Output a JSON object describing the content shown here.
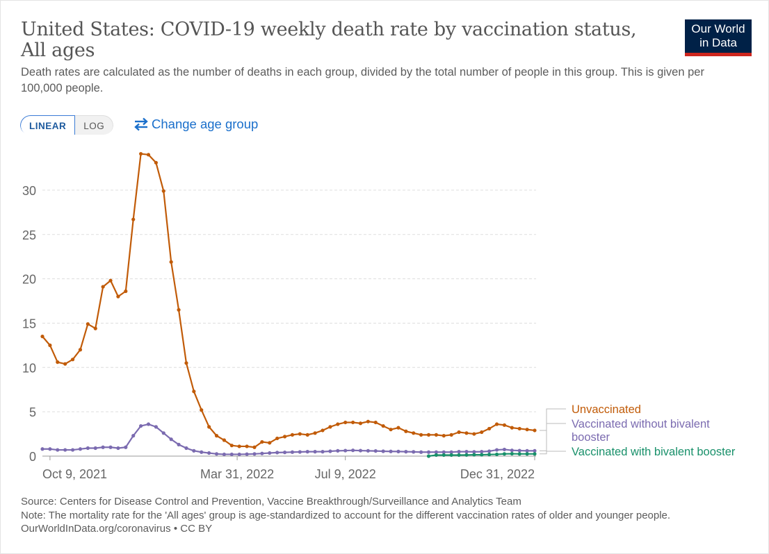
{
  "header": {
    "title": "United States: COVID-19 weekly death rate by vaccination status, All ages",
    "subtitle": "Death rates are calculated as the number of deaths in each group, divided by the total number of people in this group. This is given per 100,000 people.",
    "logo_line1": "Our World",
    "logo_line2": "in Data"
  },
  "controls": {
    "linear_label": "LINEAR",
    "log_label": "LOG",
    "change_age_label": "Change age group"
  },
  "footer": {
    "source": "Source: Centers for Disease Control and Prevention, Vaccine Breakthrough/Surveillance and Analytics Team",
    "note": "Note: The mortality rate for the 'All ages' group is age-standardized to account for the different vaccination rates of older and younger people.",
    "link": "OurWorldInData.org/coronavirus",
    "license": " • CC BY"
  },
  "colors": {
    "unvaccinated": "#c15b08",
    "without_bivalent": "#7b6bb0",
    "with_bivalent": "#18906a",
    "grid": "#dddddd",
    "axis_text": "#666666",
    "logo_bg": "#002147",
    "logo_bar": "#ce261e",
    "link": "#1a6fcb"
  },
  "chart_data": {
    "type": "line",
    "title": "United States: COVID-19 weekly death rate by vaccination status, All ages",
    "ylim": [
      0,
      34
    ],
    "yticks": [
      0,
      5,
      10,
      15,
      20,
      25,
      30
    ],
    "x_tick_labels": [
      "Oct 9, 2021",
      "Mar 31, 2022",
      "Jul 9, 2022",
      "Dec 31, 2022"
    ],
    "x_tick_dates": [
      "2021-10-09",
      "2022-03-31",
      "2022-07-09",
      "2022-12-31"
    ],
    "grid": true,
    "legend": "right end labels",
    "series": [
      {
        "name": "Unvaccinated",
        "color": "#c15b08",
        "dates": [
          "2021-10-02",
          "2021-10-09",
          "2021-10-16",
          "2021-10-23",
          "2021-10-30",
          "2021-11-06",
          "2021-11-13",
          "2021-11-20",
          "2021-11-27",
          "2021-12-04",
          "2021-12-11",
          "2021-12-18",
          "2021-12-25",
          "2022-01-01",
          "2022-01-08",
          "2022-01-15",
          "2022-01-22",
          "2022-01-29",
          "2022-02-05",
          "2022-02-12",
          "2022-02-19",
          "2022-02-26",
          "2022-03-05",
          "2022-03-12",
          "2022-03-19",
          "2022-03-26",
          "2022-04-02",
          "2022-04-09",
          "2022-04-16",
          "2022-04-23",
          "2022-04-30",
          "2022-05-07",
          "2022-05-14",
          "2022-05-21",
          "2022-05-28",
          "2022-06-04",
          "2022-06-11",
          "2022-06-18",
          "2022-06-25",
          "2022-07-02",
          "2022-07-09",
          "2022-07-16",
          "2022-07-23",
          "2022-07-30",
          "2022-08-06",
          "2022-08-13",
          "2022-08-20",
          "2022-08-27",
          "2022-09-03",
          "2022-09-10",
          "2022-09-17",
          "2022-09-24",
          "2022-10-01",
          "2022-10-08",
          "2022-10-15",
          "2022-10-22",
          "2022-10-29",
          "2022-11-05",
          "2022-11-12",
          "2022-11-19",
          "2022-11-26",
          "2022-12-03",
          "2022-12-10",
          "2022-12-17",
          "2022-12-24",
          "2022-12-31"
        ],
        "values": [
          13.5,
          12.5,
          10.6,
          10.4,
          10.9,
          12.0,
          14.9,
          14.4,
          19.1,
          19.8,
          18.0,
          18.6,
          26.7,
          34.1,
          34.0,
          33.1,
          29.9,
          21.9,
          16.5,
          10.5,
          7.3,
          5.2,
          3.3,
          2.3,
          1.8,
          1.2,
          1.1,
          1.1,
          1.0,
          1.6,
          1.5,
          2.0,
          2.2,
          2.4,
          2.5,
          2.4,
          2.6,
          2.9,
          3.3,
          3.6,
          3.8,
          3.8,
          3.7,
          3.9,
          3.8,
          3.4,
          3.0,
          3.2,
          2.8,
          2.6,
          2.4,
          2.4,
          2.4,
          2.3,
          2.4,
          2.7,
          2.6,
          2.5,
          2.7,
          3.1,
          3.6,
          3.5,
          3.2,
          3.1,
          3.0,
          2.9
        ]
      },
      {
        "name": "Vaccinated without bivalent booster",
        "label_lines": [
          "Vaccinated without bivalent",
          "booster"
        ],
        "color": "#7b6bb0",
        "dates": [
          "2021-10-02",
          "2021-10-09",
          "2021-10-16",
          "2021-10-23",
          "2021-10-30",
          "2021-11-06",
          "2021-11-13",
          "2021-11-20",
          "2021-11-27",
          "2021-12-04",
          "2021-12-11",
          "2021-12-18",
          "2021-12-25",
          "2022-01-01",
          "2022-01-08",
          "2022-01-15",
          "2022-01-22",
          "2022-01-29",
          "2022-02-05",
          "2022-02-12",
          "2022-02-19",
          "2022-02-26",
          "2022-03-05",
          "2022-03-12",
          "2022-03-19",
          "2022-03-26",
          "2022-04-02",
          "2022-04-09",
          "2022-04-16",
          "2022-04-23",
          "2022-04-30",
          "2022-05-07",
          "2022-05-14",
          "2022-05-21",
          "2022-05-28",
          "2022-06-04",
          "2022-06-11",
          "2022-06-18",
          "2022-06-25",
          "2022-07-02",
          "2022-07-09",
          "2022-07-16",
          "2022-07-23",
          "2022-07-30",
          "2022-08-06",
          "2022-08-13",
          "2022-08-20",
          "2022-08-27",
          "2022-09-03",
          "2022-09-10",
          "2022-09-17",
          "2022-09-24",
          "2022-10-01",
          "2022-10-08",
          "2022-10-15",
          "2022-10-22",
          "2022-10-29",
          "2022-11-05",
          "2022-11-12",
          "2022-11-19",
          "2022-11-26",
          "2022-12-03",
          "2022-12-10",
          "2022-12-17",
          "2022-12-24",
          "2022-12-31"
        ],
        "values": [
          0.8,
          0.8,
          0.7,
          0.7,
          0.7,
          0.8,
          0.9,
          0.9,
          1.0,
          1.0,
          0.9,
          1.0,
          2.3,
          3.4,
          3.6,
          3.3,
          2.6,
          1.9,
          1.3,
          0.9,
          0.6,
          0.45,
          0.35,
          0.25,
          0.2,
          0.2,
          0.2,
          0.22,
          0.25,
          0.3,
          0.35,
          0.4,
          0.42,
          0.45,
          0.47,
          0.5,
          0.5,
          0.5,
          0.55,
          0.6,
          0.62,
          0.65,
          0.62,
          0.6,
          0.58,
          0.55,
          0.53,
          0.52,
          0.5,
          0.48,
          0.45,
          0.45,
          0.45,
          0.45,
          0.45,
          0.5,
          0.5,
          0.48,
          0.5,
          0.55,
          0.7,
          0.75,
          0.65,
          0.62,
          0.6,
          0.6
        ]
      },
      {
        "name": "Vaccinated with bivalent booster",
        "color": "#18906a",
        "dates": [
          "2022-09-24",
          "2022-10-01",
          "2022-10-08",
          "2022-10-15",
          "2022-10-22",
          "2022-10-29",
          "2022-11-05",
          "2022-11-12",
          "2022-11-19",
          "2022-11-26",
          "2022-12-03",
          "2022-12-10",
          "2022-12-17",
          "2022-12-24",
          "2022-12-31"
        ],
        "values": [
          0.0,
          0.12,
          0.12,
          0.12,
          0.12,
          0.13,
          0.15,
          0.15,
          0.18,
          0.2,
          0.25,
          0.27,
          0.25,
          0.25,
          0.25
        ]
      }
    ]
  }
}
